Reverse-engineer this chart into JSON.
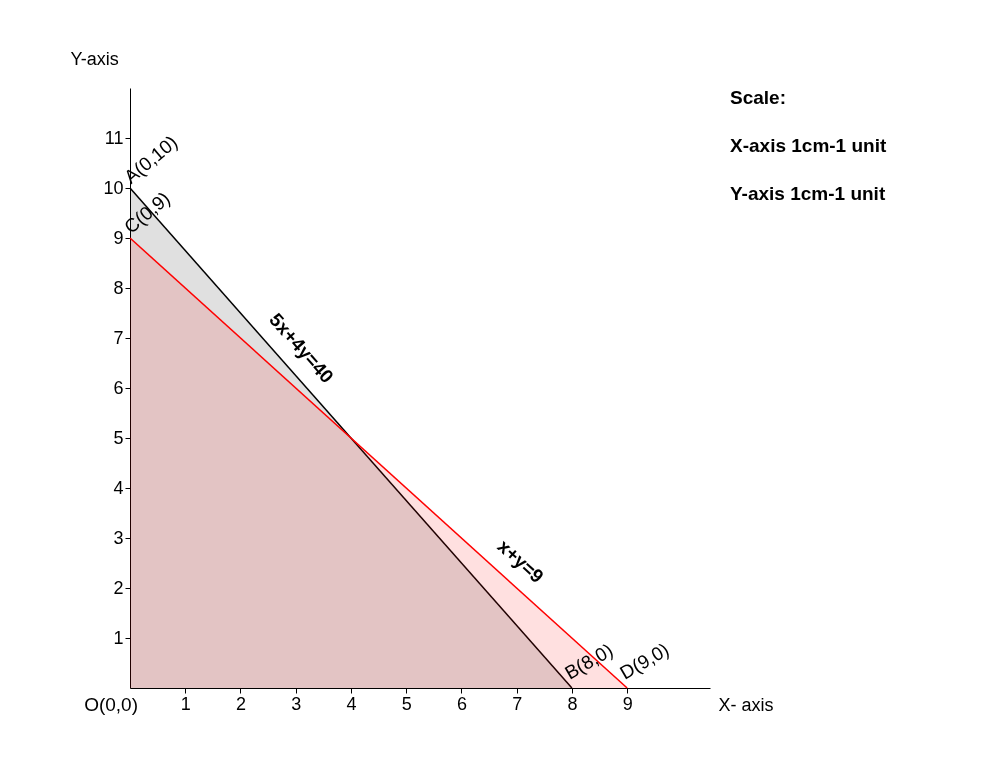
{
  "chart_data": {
    "type": "area",
    "xlabel": "X- axis",
    "ylabel": "Y-axis",
    "xlim": [
      0,
      10.5
    ],
    "ylim": [
      0,
      12
    ],
    "xticks": [
      1,
      2,
      3,
      4,
      5,
      6,
      7,
      8,
      9
    ],
    "yticks": [
      1,
      2,
      3,
      4,
      5,
      6,
      7,
      8,
      9,
      10,
      11
    ],
    "series": [
      {
        "name": "5x+4y=40",
        "color": "#000000",
        "x": [
          0,
          8
        ],
        "values": [
          10,
          0
        ]
      },
      {
        "name": "x+y=9",
        "color": "#ff0000",
        "x": [
          0,
          9
        ],
        "values": [
          9,
          0
        ]
      }
    ],
    "annotations": [
      "Scale:",
      "X-axis  1cm-1 unit",
      "Y-axis  1cm-1 unit",
      {
        "text": "A(0,10)",
        "x": 0,
        "y": 10
      },
      {
        "text": "C(0,9)",
        "x": 0,
        "y": 9
      },
      {
        "text": "B(8,0)",
        "x": 8,
        "y": 0
      },
      {
        "text": "D(9,0)",
        "x": 9,
        "y": 0
      },
      {
        "text": "O(0,0)",
        "x": 0,
        "y": 0
      }
    ],
    "grid": false
  }
}
